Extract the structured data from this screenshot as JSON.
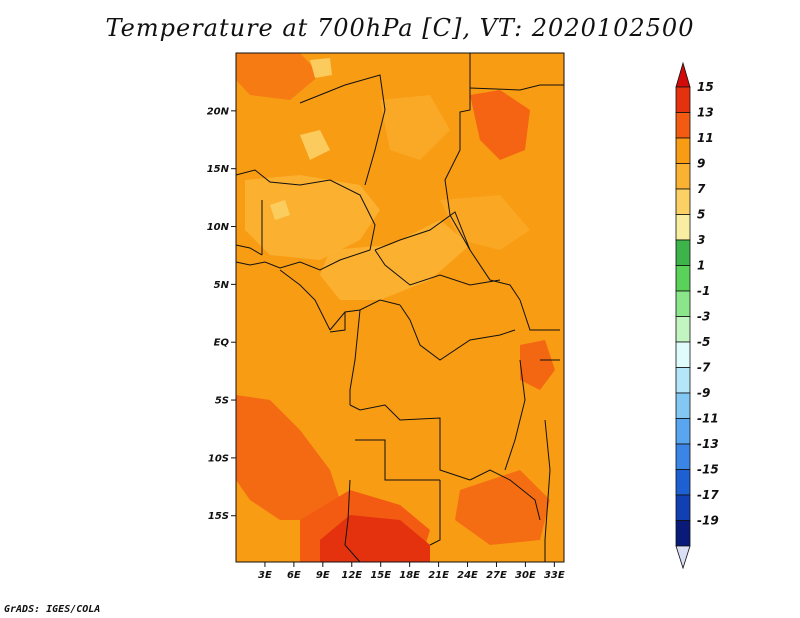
{
  "title": "Temperature at 700hPa [C], VT: 2020102500",
  "footer": "GrADS: IGES/COLA",
  "map": {
    "lon_range": [
      0,
      34
    ],
    "lat_range": [
      -19,
      25
    ],
    "lon_ticks": [
      "3E",
      "6E",
      "9E",
      "12E",
      "15E",
      "18E",
      "21E",
      "24E",
      "27E",
      "30E",
      "33E"
    ],
    "lon_tick_values": [
      3,
      6,
      9,
      12,
      15,
      18,
      21,
      24,
      27,
      30,
      33
    ],
    "lat_ticks": [
      "20N",
      "15N",
      "10N",
      "5N",
      "EQ",
      "5S",
      "10S",
      "15S"
    ],
    "lat_tick_values": [
      20,
      15,
      10,
      5,
      0,
      -5,
      -10,
      -15
    ],
    "base_color": "#f89c14"
  },
  "colorbar": {
    "labels": [
      "15",
      "13",
      "11",
      "9",
      "7",
      "5",
      "3",
      "1",
      "-1",
      "-3",
      "-5",
      "-7",
      "-9",
      "-11",
      "-13",
      "-15",
      "-17",
      "-19"
    ],
    "colors": [
      "#e4320e",
      "#f35a12",
      "#f89c14",
      "#fbb233",
      "#fbd065",
      "#f9eda1",
      "#3cb44a",
      "#5ad25a",
      "#8be68b",
      "#c2f5c2",
      "#e0fbfb",
      "#b4e6fa",
      "#83c8f5",
      "#5aa5f0",
      "#3a85e6",
      "#1e60d2",
      "#1040b4",
      "#0a1a78"
    ],
    "top_arrow_color": "#d20a0a",
    "bottom_arrow_color": "#dce0f5"
  }
}
